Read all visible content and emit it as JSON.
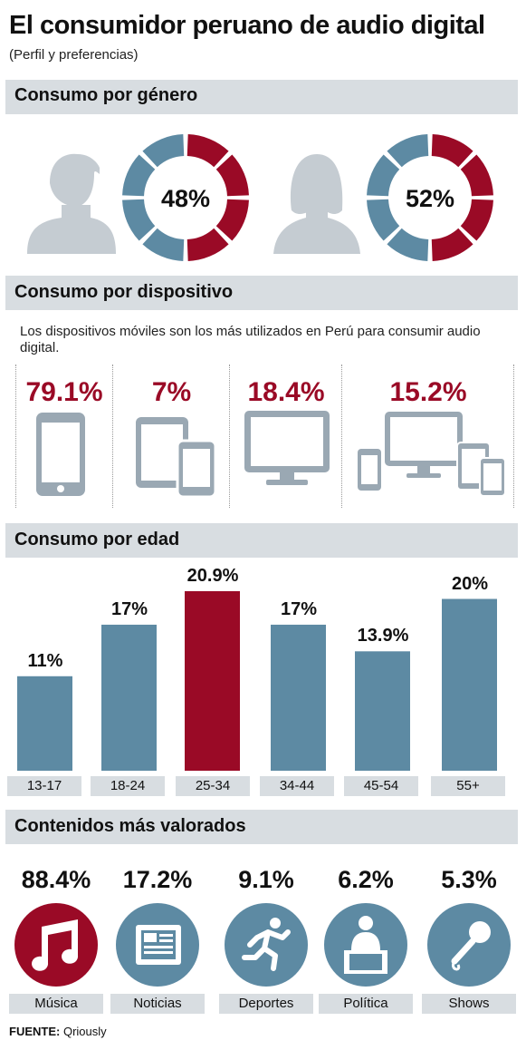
{
  "header": {
    "title": "El consumidor peruano de audio digital",
    "subtitle": "(Perfil y preferencias)"
  },
  "sections": {
    "gender": "Consumo por género",
    "device": "Consumo por dispositivo",
    "age": "Consumo por edad",
    "content": "Contenidos más valorados"
  },
  "device_intro": "Los dispositivos móviles son los más utilizados en Perú para consumir audio digital.",
  "source": {
    "label": "FUENTE:",
    "value": "Qriously"
  },
  "colors": {
    "red": "#9a0a26",
    "blue": "#5d8aa3",
    "gray": "#c5ccd2",
    "band": "#d8dde1"
  },
  "chart_data": [
    {
      "type": "pie",
      "title": "Consumo por género",
      "slices": [
        {
          "label": "man",
          "icon": "man-silhouette-icon",
          "display": "48%",
          "value": 48
        },
        {
          "label": "woman",
          "icon": "woman-silhouette-icon",
          "display": "52%",
          "value": 52
        }
      ]
    },
    {
      "type": "bar",
      "title": "Consumo por dispositivo",
      "categories": [
        "smartphone-icon",
        "tablet-and-phone-icon",
        "desktop-monitor-icon",
        "multi-device-icon"
      ],
      "values": [
        79.1,
        7,
        18.4,
        15.2
      ],
      "labels": [
        "79.1%",
        "7%",
        "18.4%",
        "15.2%"
      ]
    },
    {
      "type": "bar",
      "title": "Consumo por edad",
      "categories": [
        "13-17",
        "18-24",
        "25-34",
        "34-44",
        "45-54",
        "55+"
      ],
      "values": [
        11,
        17,
        20.9,
        17,
        13.9,
        20
      ],
      "labels": [
        "11%",
        "17%",
        "20.9%",
        "17%",
        "13.9%",
        "20%"
      ],
      "highlight": "25-34",
      "ylim": [
        0,
        20.9
      ]
    },
    {
      "type": "bar",
      "title": "Contenidos más valorados",
      "categories": [
        "Música",
        "Noticias",
        "Deportes",
        "Política",
        "Shows"
      ],
      "values": [
        88.4,
        17.2,
        9.1,
        6.2,
        5.3
      ],
      "labels": [
        "88.4%",
        "17.2%",
        "9.1%",
        "6.2%",
        "5.3%"
      ],
      "icons": [
        "music-note-icon",
        "newspaper-icon",
        "runner-icon",
        "politician-podium-icon",
        "microphone-icon"
      ]
    }
  ]
}
